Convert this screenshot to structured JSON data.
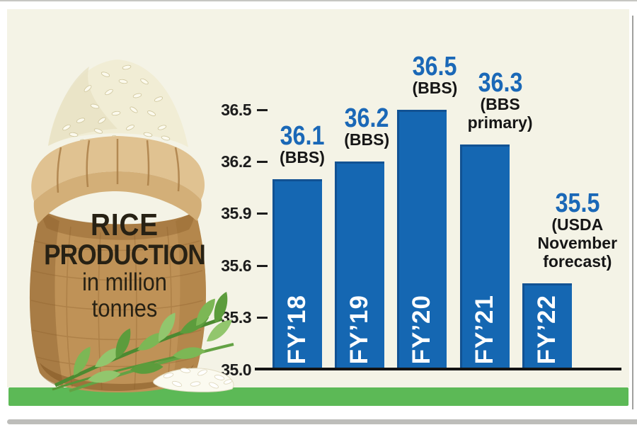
{
  "frame": {
    "background": "#ffffff"
  },
  "panel": {
    "background_color": "#f4f3e6",
    "stripe_color": "#5cb956"
  },
  "sack": {
    "title_line1": "RICE",
    "title_line2": "PRODUCTION",
    "subtitle_line1": "in million",
    "subtitle_line2": "tonnes"
  },
  "chart_data": {
    "type": "bar",
    "title": "Rice production",
    "subtitle": "in million tonnes",
    "categories": [
      "FY’18",
      "FY’19",
      "FY’20",
      "FY’21",
      "FY’22"
    ],
    "values": [
      36.1,
      36.2,
      36.5,
      36.3,
      35.5
    ],
    "bar_annotations": [
      {
        "value_label": "36.1",
        "source_lines": [
          "(BBS)"
        ]
      },
      {
        "value_label": "36.2",
        "source_lines": [
          "(BBS)"
        ]
      },
      {
        "value_label": "36.5",
        "source_lines": [
          "(BBS)"
        ]
      },
      {
        "value_label": "36.3",
        "source_lines": [
          "(BBS",
          "primary)"
        ]
      },
      {
        "value_label": "35.5",
        "source_lines": [
          "(USDA",
          "November",
          "forecast)"
        ]
      }
    ],
    "yticks": [
      36.5,
      36.2,
      35.9,
      35.6,
      35.3,
      35.0
    ],
    "ylim": [
      35.0,
      36.5
    ],
    "xlabel": "",
    "ylabel": "million tonnes",
    "grid": false,
    "legend": false,
    "bar_color": "#1567b2",
    "value_label_color": "#1a68b7",
    "category_label_color": "#ffffff",
    "axis_color": "#141414",
    "tick_label_color": "#1c1c1c"
  }
}
